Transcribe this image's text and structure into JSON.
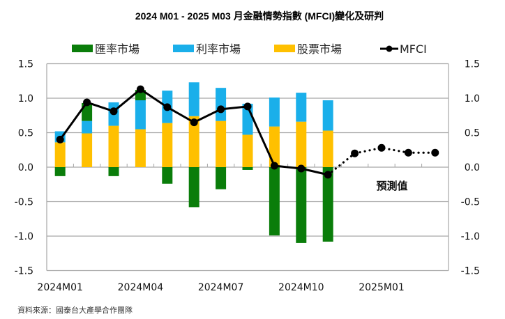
{
  "chart_data": {
    "type": "bar",
    "title": "2024 M01 - 2025 M03  月金融情勢指數 (MFCI)變化及研判",
    "categories": [
      "2024M01",
      "2024M02",
      "2024M03",
      "2024M04",
      "2024M05",
      "2024M06",
      "2024M07",
      "2024M08",
      "2024M09",
      "2024M10",
      "2024M11",
      "2024M12",
      "2025M01",
      "2025M02",
      "2025M03"
    ],
    "x_tick_labels": [
      "2024M01",
      "2024M04",
      "2024M07",
      "2024M10",
      "2025M01"
    ],
    "x_tick_label_categories": [
      "2024M01",
      "2024M04",
      "2024M07",
      "2024M10",
      "2025M01"
    ],
    "ylim": [
      -1.5,
      1.5
    ],
    "y_ticks_left": [
      "1.5",
      "1.0",
      "0.5",
      "0.0",
      "-0.5",
      "-1.0",
      "-1.5"
    ],
    "y_ticks_right": [
      "1.5",
      "1.0",
      "0.5",
      "0.0",
      "-0.5",
      "-1.0",
      "-1.5"
    ],
    "y_tick_values": [
      1.5,
      1.0,
      0.5,
      0.0,
      -0.5,
      -1.0,
      -1.5
    ],
    "grid": true,
    "legend_position": "top",
    "series": [
      {
        "name": "匯率市場",
        "kind": "stacked-bar",
        "color": "#0a7d0a",
        "values": [
          -0.13,
          0.26,
          -0.13,
          0.15,
          -0.24,
          -0.58,
          -0.32,
          -0.04,
          -0.99,
          -1.1,
          -1.08,
          null,
          null,
          null,
          null
        ]
      },
      {
        "name": "利率市場",
        "kind": "stacked-bar",
        "color": "#1aafea",
        "values": [
          0.16,
          0.18,
          0.34,
          0.42,
          0.47,
          0.49,
          0.48,
          0.45,
          0.42,
          0.42,
          0.44,
          null,
          null,
          null,
          null
        ]
      },
      {
        "name": "股票市場",
        "kind": "stacked-bar",
        "color": "#ffc000",
        "values": [
          0.36,
          0.49,
          0.6,
          0.55,
          0.64,
          0.74,
          0.67,
          0.47,
          0.59,
          0.66,
          0.53,
          null,
          null,
          null,
          null
        ]
      },
      {
        "name": "MFCI",
        "kind": "line",
        "color": "#000000",
        "values": [
          0.4,
          0.94,
          0.81,
          1.13,
          0.87,
          0.65,
          0.84,
          0.88,
          0.02,
          -0.02,
          -0.11,
          0.2,
          0.28,
          0.21,
          0.21
        ],
        "forecast_start_index": 11
      }
    ],
    "annotations": [
      {
        "text": "預測值",
        "category": "2025M01"
      }
    ],
    "source_note": "資料來源：國泰台大產學合作團隊"
  }
}
